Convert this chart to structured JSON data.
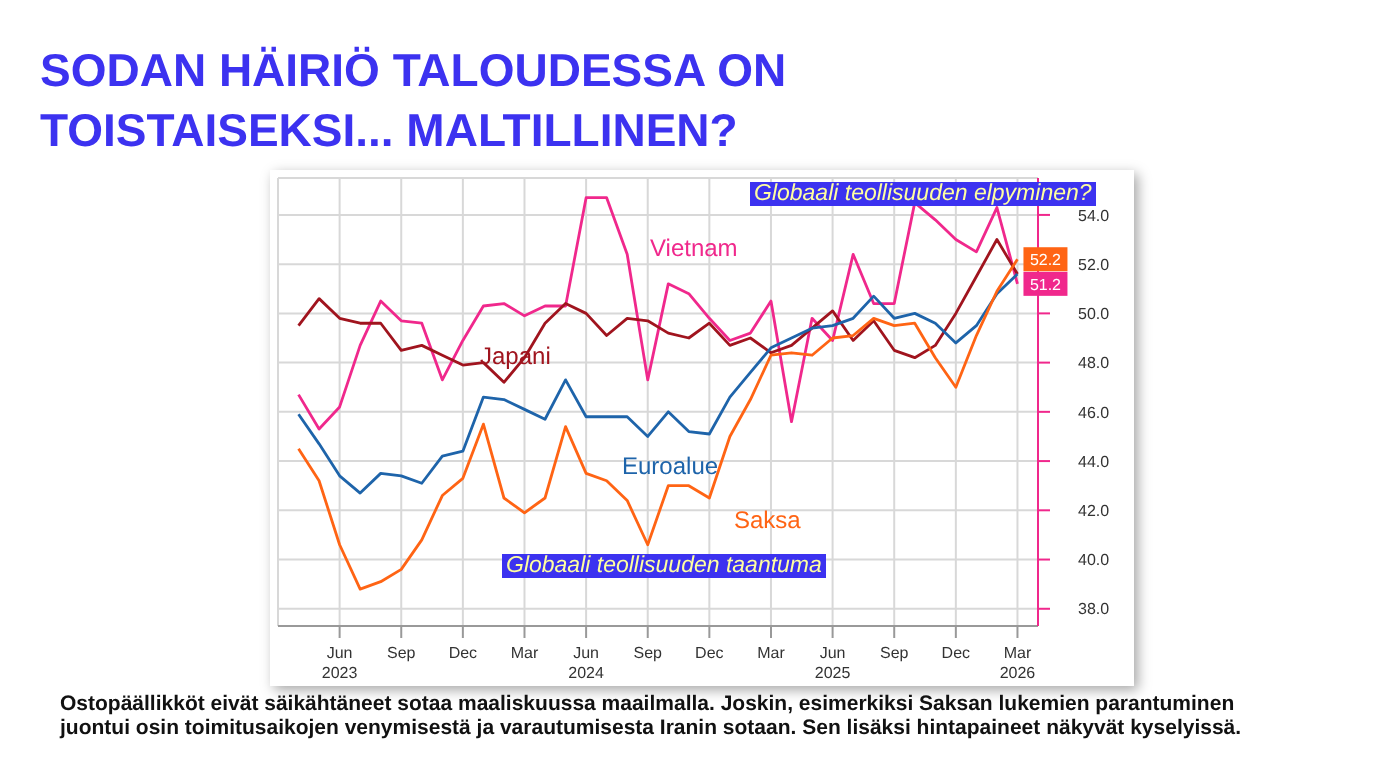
{
  "chart_data": {
    "type": "line",
    "title": "SODAN HÄIRIÖ TALOUDESSA ON TOISTAISEKSI... MALTILLINEN?",
    "annotations": [
      "Globaali teollisuuden elpyminen?",
      "Globaali teollisuuden taantuma",
      "Ostopäällikköt eivät säikähtäneet sotaa maaliskuussa maailmalla. Joskin, esimerkiksi Saksan lukemien parantuminen juontui osin toimitusaikojen venymisestä ja varautumisesta Iranin sotaan. Sen lisäksi hintapaineet näkyvät kyselyissä."
    ],
    "x": [
      "2023-04",
      "2023-05",
      "2023-06",
      "2023-07",
      "2023-08",
      "2023-09",
      "2023-10",
      "2023-11",
      "2023-12",
      "2024-01",
      "2024-02",
      "2024-03",
      "2024-04",
      "2024-05",
      "2024-06",
      "2024-07",
      "2024-08",
      "2024-09",
      "2024-10",
      "2024-11",
      "2024-12",
      "2025-01",
      "2025-02",
      "2025-03",
      "2025-04",
      "2025-05",
      "2025-06",
      "2025-07",
      "2025-08",
      "2025-09",
      "2025-10",
      "2025-11",
      "2025-12",
      "2026-01",
      "2026-02",
      "2026-03"
    ],
    "series": [
      {
        "name": "Vietnam",
        "color": "#f0288c",
        "values": [
          46.7,
          45.3,
          46.2,
          48.7,
          50.5,
          49.7,
          49.6,
          47.3,
          48.9,
          50.3,
          50.4,
          49.9,
          50.3,
          50.3,
          54.7,
          54.7,
          52.4,
          47.3,
          51.2,
          50.8,
          49.8,
          48.9,
          49.2,
          50.5,
          45.6,
          49.8,
          48.9,
          52.4,
          50.4,
          50.4,
          54.5,
          53.8,
          53.0,
          52.5,
          54.3,
          51.2
        ],
        "value_labels": [
          null,
          null,
          null,
          null,
          null,
          null,
          null,
          null,
          null,
          null,
          null,
          null,
          null,
          null,
          null,
          null,
          null,
          null,
          null,
          null,
          null,
          null,
          null,
          null,
          null,
          null,
          null,
          null,
          null,
          null,
          null,
          null,
          null,
          null,
          null,
          "51.2"
        ]
      },
      {
        "name": "Japani",
        "color": "#a0141e",
        "values": [
          49.5,
          50.6,
          49.8,
          49.6,
          49.6,
          48.5,
          48.7,
          48.3,
          47.9,
          48.0,
          47.2,
          48.2,
          49.6,
          50.4,
          50.0,
          49.1,
          49.8,
          49.7,
          49.2,
          49.0,
          49.6,
          48.7,
          49.0,
          48.4,
          48.7,
          49.4,
          50.1,
          48.9,
          49.7,
          48.5,
          48.2,
          48.7,
          50.0,
          51.5,
          53.0,
          51.6
        ]
      },
      {
        "name": "Euroalue",
        "color": "#1e64aa",
        "values": [
          45.9,
          44.7,
          43.4,
          42.7,
          43.5,
          43.4,
          43.1,
          44.2,
          44.4,
          46.6,
          46.5,
          46.1,
          45.7,
          47.3,
          45.8,
          45.8,
          45.8,
          45.0,
          46.0,
          45.2,
          45.1,
          46.6,
          47.6,
          48.6,
          49.0,
          49.4,
          49.5,
          49.8,
          50.7,
          49.8,
          50.0,
          49.6,
          48.8,
          49.5,
          50.8,
          51.6
        ]
      },
      {
        "name": "Saksa",
        "color": "#ff6414",
        "values": [
          44.5,
          43.2,
          40.6,
          38.8,
          39.1,
          39.6,
          40.8,
          42.6,
          43.3,
          45.5,
          42.5,
          41.9,
          42.5,
          45.4,
          43.5,
          43.2,
          42.4,
          40.6,
          43.0,
          43.0,
          42.5,
          45.0,
          46.5,
          48.3,
          48.4,
          48.3,
          49.0,
          49.1,
          49.8,
          49.5,
          49.6,
          48.2,
          47.0,
          49.1,
          50.9,
          52.2
        ],
        "value_labels": [
          null,
          null,
          null,
          null,
          null,
          null,
          null,
          null,
          null,
          null,
          null,
          null,
          null,
          null,
          null,
          null,
          null,
          null,
          null,
          null,
          null,
          null,
          null,
          null,
          null,
          null,
          null,
          null,
          null,
          null,
          null,
          null,
          null,
          null,
          null,
          "52.2"
        ]
      }
    ],
    "xlim": [
      "2023-03",
      "2026-04"
    ],
    "xticks": [
      {
        "value": "2023-06",
        "label": "Jun\n2023"
      },
      {
        "value": "2023-09",
        "label": "Sep"
      },
      {
        "value": "2023-12",
        "label": "Dec"
      },
      {
        "value": "2024-03",
        "label": "Mar"
      },
      {
        "value": "2024-06",
        "label": "Jun\n2024"
      },
      {
        "value": "2024-09",
        "label": "Sep"
      },
      {
        "value": "2024-12",
        "label": "Dec"
      },
      {
        "value": "2025-03",
        "label": "Mar"
      },
      {
        "value": "2025-06",
        "label": "Jun\n2025"
      },
      {
        "value": "2025-09",
        "label": "Sep"
      },
      {
        "value": "2025-12",
        "label": "Dec"
      },
      {
        "value": "2026-03",
        "label": "Mar\n2026"
      }
    ],
    "ylim": [
      37.3,
      55.5
    ],
    "yticks": [
      {
        "value": 38,
        "label": "38.0"
      },
      {
        "value": 40,
        "label": "40.0"
      },
      {
        "value": 42,
        "label": "42.0"
      },
      {
        "value": 44,
        "label": "44.0"
      },
      {
        "value": 46,
        "label": "46.0"
      },
      {
        "value": 48,
        "label": "48.0"
      },
      {
        "value": 50,
        "label": "50.0"
      },
      {
        "value": 52,
        "label": "52.0"
      },
      {
        "value": 54,
        "label": "54.0"
      }
    ],
    "grid": true,
    "marker": "none",
    "line_style": "solid"
  }
}
